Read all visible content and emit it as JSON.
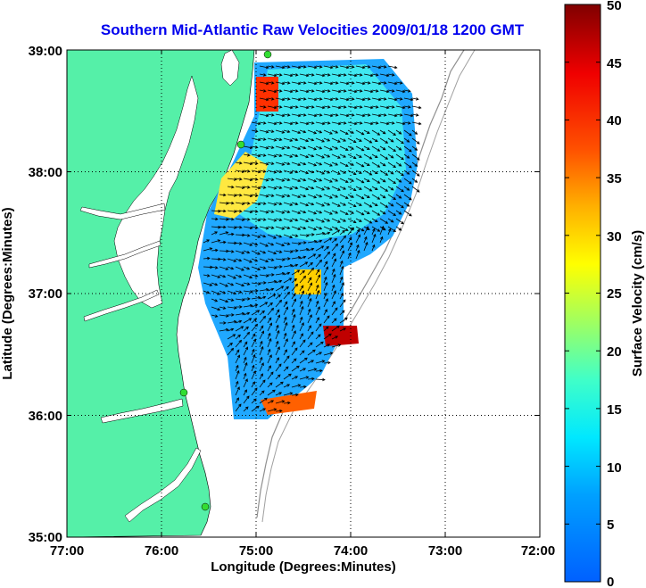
{
  "title": "Southern Mid-Atlantic Raw Velocities 2009/01/18 1200 GMT",
  "map": {
    "xlabel": "Longitude (Degrees:Minutes)",
    "ylabel": "Latitude (Degrees:Minutes)",
    "lon_ticks": [
      "77:00",
      "76:00",
      "75:00",
      "74:00",
      "73:00",
      "72:00"
    ],
    "lat_ticks": [
      "39:00",
      "38:00",
      "37:00",
      "36:00",
      "35:00"
    ],
    "lon_range": [
      -77,
      -72
    ],
    "lat_range": [
      35,
      39
    ],
    "land_color": "#55f0a8",
    "water_color": "#ffffff"
  },
  "colorbar": {
    "label": "Surface Velocity (cm/s)",
    "ticks": [
      "50",
      "45",
      "40",
      "35",
      "30",
      "25",
      "20",
      "15",
      "10",
      "5",
      "0"
    ],
    "range": [
      0,
      50
    ],
    "colors": [
      "#0060ff",
      "#00c8ff",
      "#40ffd0",
      "#a0ff60",
      "#ffff00",
      "#ff9000",
      "#ff1000",
      "#800000"
    ]
  }
}
